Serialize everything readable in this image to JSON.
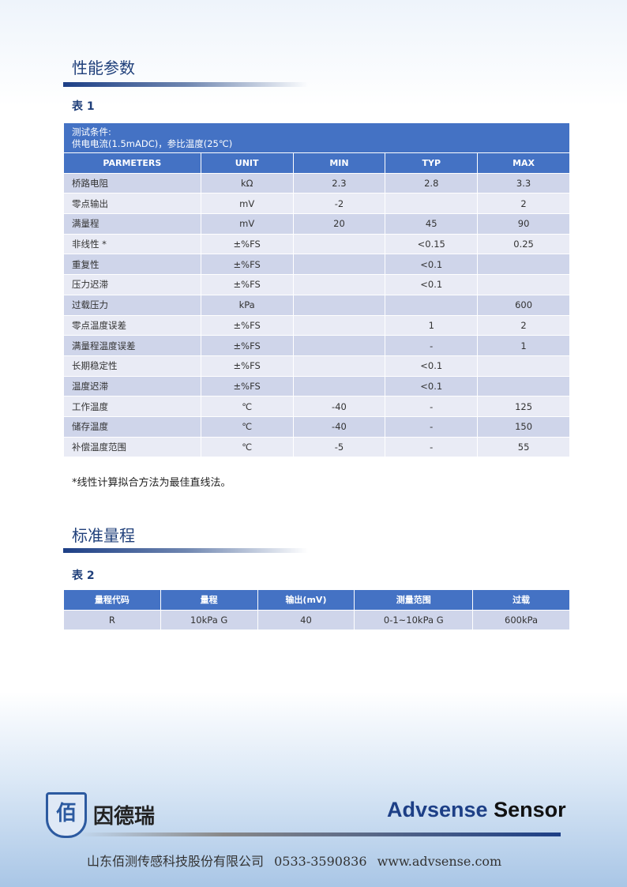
{
  "section1": {
    "title": "性能参数",
    "table_label": "表 1",
    "condition_line1": "测试条件:",
    "condition_line2": "供电电流(1.5mADC)，参比温度(25℃)",
    "headers": [
      "PARMETERS",
      "UNIT",
      "MIN",
      "TYP",
      "MAX"
    ],
    "rows": [
      [
        "桥路电阻",
        "kΩ",
        "2.3",
        "2.8",
        "3.3"
      ],
      [
        "零点输出",
        "mV",
        "-2",
        "",
        "2"
      ],
      [
        "满量程",
        "mV",
        "20",
        "45",
        "90"
      ],
      [
        "非线性 *",
        "±%FS",
        "",
        "<0.15",
        "0.25"
      ],
      [
        "重复性",
        "±%FS",
        "",
        "<0.1",
        ""
      ],
      [
        "压力迟滞",
        "±%FS",
        "",
        "<0.1",
        ""
      ],
      [
        "过载压力",
        "kPa",
        "",
        "",
        "600"
      ],
      [
        "零点温度误差",
        "±%FS",
        "",
        "1",
        "2"
      ],
      [
        "满量程温度误差",
        "±%FS",
        "",
        "-",
        "1"
      ],
      [
        "长期稳定性",
        "±%FS",
        "",
        "<0.1",
        ""
      ],
      [
        "温度迟滞",
        "±%FS",
        "",
        "<0.1",
        ""
      ],
      [
        "工作温度",
        "℃",
        "-40",
        "-",
        "125"
      ],
      [
        "储存温度",
        "℃",
        "-40",
        "-",
        "150"
      ],
      [
        "补偿温度范围",
        "℃",
        "-5",
        "-",
        "55"
      ]
    ],
    "note": "*线性计算拟合方法为最佳直线法。"
  },
  "section2": {
    "title": "标准量程",
    "table_label": "表 2",
    "headers": [
      "量程代码",
      "量程",
      "输出(mV)",
      "测量范围",
      "过载"
    ],
    "rows": [
      [
        "R",
        "10kPa G",
        "40",
        "0-1~10kPa G",
        "600kPa"
      ]
    ]
  },
  "footer": {
    "logo_text": "因德瑞",
    "brand_blue": "Advsense",
    "brand_black": "Sensor",
    "company": "山东佰测传感科技股份有限公司",
    "phone": "0533-3590836",
    "website": "www.advsense.com"
  }
}
